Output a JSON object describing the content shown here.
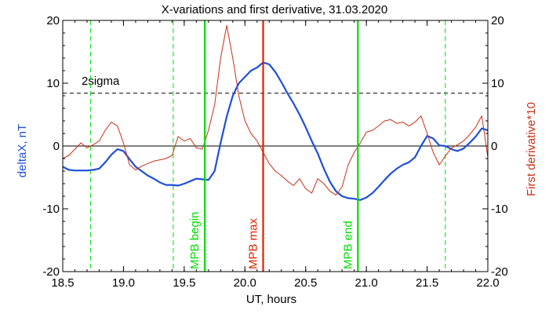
{
  "chart_data": {
    "type": "line",
    "title": "X-variations and first derivative, 31.03.2020",
    "xlabel": "UT, hours",
    "ylabel_left": "deltaX, nT",
    "ylabel_right": "First derivative*10",
    "xlim": [
      18.5,
      22.0
    ],
    "ylim": [
      -20,
      20
    ],
    "x_ticks": [
      18.5,
      19.0,
      19.5,
      20.0,
      20.5,
      21.0,
      21.5,
      22.0
    ],
    "x_tick_labels": [
      "18.5",
      "19.0",
      "19.5",
      "20.0",
      "20.5",
      "21.0",
      "21.5",
      "22.0"
    ],
    "y_ticks": [
      -20,
      -10,
      0,
      10,
      20
    ],
    "y_tick_labels": [
      "-20",
      "-10",
      "0",
      "10",
      "20"
    ],
    "threshold": {
      "label": "2sigma",
      "value": 8.4
    },
    "markers": [
      {
        "label": "MPB begin",
        "x": 19.67,
        "color": "#00dd00"
      },
      {
        "label": "MPB max",
        "x": 20.15,
        "color": "#dd2200"
      },
      {
        "label": "MPB end",
        "x": 20.93,
        "color": "#00dd00"
      }
    ],
    "dashed_markers": [
      18.73,
      19.41,
      21.65
    ],
    "colors": {
      "deltaX": "#1f4fd8",
      "derivative": "#c83018",
      "markers_dashed": "#00dd00"
    },
    "series": [
      {
        "name": "deltaX, nT",
        "x": [
          18.5,
          18.55,
          18.6,
          18.65,
          18.7,
          18.75,
          18.8,
          18.85,
          18.9,
          18.95,
          19.0,
          19.05,
          19.1,
          19.15,
          19.2,
          19.25,
          19.3,
          19.35,
          19.4,
          19.45,
          19.5,
          19.55,
          19.6,
          19.65,
          19.7,
          19.75,
          19.8,
          19.85,
          19.9,
          19.95,
          20.0,
          20.05,
          20.1,
          20.15,
          20.2,
          20.25,
          20.3,
          20.35,
          20.4,
          20.45,
          20.5,
          20.55,
          20.6,
          20.65,
          20.7,
          20.75,
          20.8,
          20.85,
          20.9,
          20.95,
          21.0,
          21.05,
          21.1,
          21.15,
          21.2,
          21.25,
          21.3,
          21.35,
          21.4,
          21.45,
          21.5,
          21.55,
          21.6,
          21.65,
          21.7,
          21.75,
          21.8,
          21.85,
          21.9,
          21.95,
          22.0
        ],
        "y": [
          -3.3,
          -3.8,
          -3.9,
          -3.9,
          -3.9,
          -3.8,
          -3.6,
          -2.6,
          -1.4,
          -0.5,
          -0.8,
          -2.1,
          -3.3,
          -4.0,
          -4.7,
          -5.2,
          -5.8,
          -6.2,
          -6.2,
          -6.3,
          -6.0,
          -5.6,
          -5.2,
          -5.3,
          -5.4,
          -4.0,
          0.5,
          4.7,
          8.0,
          10.0,
          11.0,
          12.0,
          12.5,
          13.3,
          13.0,
          11.8,
          10.2,
          8.4,
          6.8,
          5.0,
          3.0,
          0.8,
          -1.2,
          -3.6,
          -5.7,
          -7.2,
          -8.0,
          -8.3,
          -8.4,
          -8.6,
          -8.2,
          -7.5,
          -6.5,
          -5.4,
          -4.4,
          -3.6,
          -3.0,
          -2.6,
          -1.8,
          0.0,
          1.6,
          1.2,
          0.1,
          0.0,
          -0.5,
          -0.8,
          -0.4,
          0.5,
          1.5,
          2.8,
          2.5
        ]
      },
      {
        "name": "First derivative*10",
        "x": [
          18.5,
          18.55,
          18.6,
          18.65,
          18.7,
          18.75,
          18.8,
          18.85,
          18.9,
          18.95,
          19.0,
          19.05,
          19.1,
          19.15,
          19.2,
          19.25,
          19.3,
          19.35,
          19.4,
          19.45,
          19.5,
          19.55,
          19.6,
          19.65,
          19.7,
          19.75,
          19.8,
          19.85,
          19.9,
          19.95,
          20.0,
          20.05,
          20.1,
          20.15,
          20.2,
          20.25,
          20.3,
          20.35,
          20.4,
          20.45,
          20.5,
          20.55,
          20.6,
          20.65,
          20.7,
          20.75,
          20.8,
          20.85,
          20.9,
          20.95,
          21.0,
          21.05,
          21.1,
          21.15,
          21.2,
          21.25,
          21.3,
          21.35,
          21.4,
          21.45,
          21.5,
          21.55,
          21.6,
          21.65,
          21.7,
          21.75,
          21.8,
          21.85,
          21.9,
          21.95,
          22.0
        ],
        "y": [
          -2.0,
          -1.5,
          -0.5,
          0.5,
          -0.3,
          0.2,
          0.8,
          2.5,
          3.8,
          3.2,
          0.5,
          -3.0,
          -3.8,
          -3.2,
          -2.8,
          -2.4,
          -2.2,
          -2.0,
          -1.5,
          1.5,
          0.8,
          1.2,
          -0.3,
          -0.5,
          2.5,
          6.5,
          14.0,
          19.2,
          14.0,
          8.0,
          4.0,
          2.0,
          0.8,
          -1.0,
          -2.8,
          -4.0,
          -4.7,
          -5.6,
          -6.3,
          -5.2,
          -6.8,
          -7.5,
          -5.2,
          -6.0,
          -7.2,
          -7.8,
          -6.5,
          -3.0,
          -1.0,
          0.5,
          2.2,
          2.5,
          3.2,
          4.0,
          4.2,
          3.6,
          3.8,
          3.2,
          3.8,
          4.8,
          2.0,
          -1.0,
          -3.0,
          -1.6,
          -0.3,
          0.2,
          0.8,
          1.8,
          3.0,
          4.8,
          -1.8
        ]
      }
    ]
  }
}
